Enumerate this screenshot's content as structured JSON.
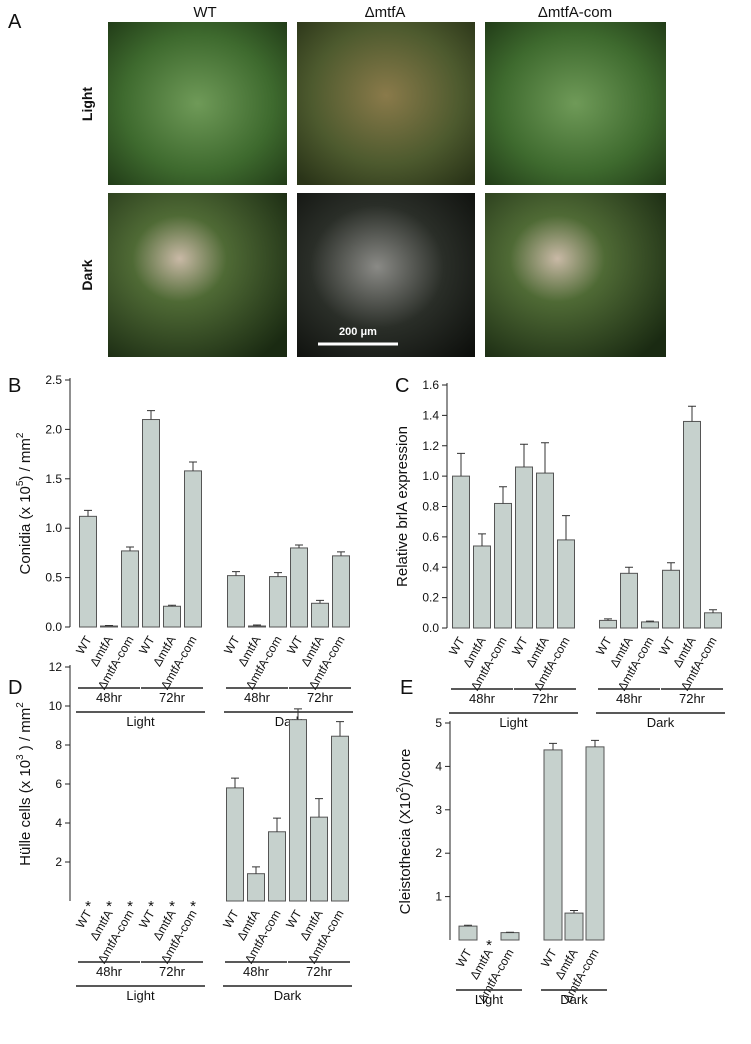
{
  "panel_a": {
    "label": "A",
    "columns": [
      "WT",
      "ΔmtfA",
      "ΔmtfA-com"
    ],
    "rows": [
      "Light",
      "Dark"
    ],
    "scale_bar": "200 μm"
  },
  "chart_data": [
    {
      "panel": "B",
      "type": "bar",
      "ylabel": [
        "Conidia (x 10",
        "5",
        ") / mm",
        "2"
      ],
      "color": "#c6d1cd",
      "ylim": [
        0,
        2.5
      ],
      "yticks": [
        {
          "value": 0,
          "label": "0.0"
        },
        0.5,
        {
          "value": 1,
          "label": "1.0"
        },
        1.5,
        {
          "value": 2,
          "label": "2.0"
        },
        2.5
      ],
      "groups": [
        {
          "label": "Light",
          "subgroups": [
            {
              "label": "48hr",
              "categories": [
                "WT",
                "ΔmtfA",
                "ΔmtfA-com"
              ],
              "values": [
                1.12,
                0.01,
                0.77
              ],
              "errors": [
                0.06,
                0.005,
                0.04
              ]
            },
            {
              "label": "72hr",
              "categories": [
                "WT",
                "ΔmtfA",
                "ΔmtfA-com"
              ],
              "values": [
                2.1,
                0.21,
                1.58
              ],
              "errors": [
                0.09,
                0.01,
                0.09
              ]
            }
          ]
        },
        {
          "label": "Dark",
          "subgroups": [
            {
              "label": "48hr",
              "categories": [
                "WT",
                "ΔmtfA",
                "ΔmtfA-com"
              ],
              "values": [
                0.52,
                0.01,
                0.51
              ],
              "errors": [
                0.04,
                0.01,
                0.04
              ]
            },
            {
              "label": "72hr",
              "categories": [
                "WT",
                "ΔmtfA",
                "ΔmtfA-com"
              ],
              "values": [
                0.8,
                0.24,
                0.72
              ],
              "errors": [
                0.03,
                0.03,
                0.04
              ]
            }
          ]
        }
      ]
    },
    {
      "panel": "C",
      "type": "bar",
      "ylabel": [
        "Relative brlA expression"
      ],
      "color": "#c6d1cd",
      "ylim": [
        0,
        1.6
      ],
      "yticks": [
        {
          "value": 0,
          "label": "0.0"
        },
        0.2,
        0.4,
        0.6,
        0.8,
        {
          "value": 1,
          "label": "1.0"
        },
        1.2,
        1.4,
        1.6
      ],
      "groups": [
        {
          "label": "Light",
          "subgroups": [
            {
              "label": "48hr",
              "categories": [
                "WT",
                "ΔmtfA",
                "ΔmtfA-com"
              ],
              "values": [
                1.0,
                0.54,
                0.82
              ],
              "errors": [
                0.15,
                0.08,
                0.11
              ]
            },
            {
              "label": "72hr",
              "categories": [
                "WT",
                "ΔmtfA",
                "ΔmtfA-com"
              ],
              "values": [
                1.06,
                1.02,
                0.58
              ],
              "errors": [
                0.15,
                0.2,
                0.16
              ]
            }
          ]
        },
        {
          "label": "Dark",
          "subgroups": [
            {
              "label": "48hr",
              "categories": [
                "WT",
                "ΔmtfA",
                "ΔmtfA-com"
              ],
              "values": [
                0.05,
                0.36,
                0.04
              ],
              "errors": [
                0.01,
                0.04,
                0.005
              ]
            },
            {
              "label": "72hr",
              "categories": [
                "WT",
                "ΔmtfA",
                "ΔmtfA-com"
              ],
              "values": [
                0.38,
                1.36,
                0.1
              ],
              "errors": [
                0.05,
                0.1,
                0.02
              ]
            }
          ]
        }
      ]
    },
    {
      "panel": "D",
      "type": "bar",
      "ylabel": [
        "Hülle cells (x 10",
        "3",
        " ) / mm",
        "2"
      ],
      "color": "#c6d1cd",
      "ylim": [
        0,
        12
      ],
      "yticks": [
        2,
        4,
        6,
        8,
        10,
        12
      ],
      "groups": [
        {
          "label": "Light",
          "subgroups": [
            {
              "label": "48hr",
              "categories": [
                "WT",
                "ΔmtfA",
                "ΔmtfA-com"
              ],
              "values": [
                null,
                null,
                null
              ],
              "value_labels": [
                "*",
                "*",
                "*"
              ],
              "errors": [
                null,
                null,
                null
              ]
            },
            {
              "label": "72hr",
              "categories": [
                "WT",
                "ΔmtfA",
                "ΔmtfA-com"
              ],
              "values": [
                null,
                null,
                null
              ],
              "value_labels": [
                "*",
                "*",
                "*"
              ],
              "errors": [
                null,
                null,
                null
              ]
            }
          ]
        },
        {
          "label": "Dark",
          "subgroups": [
            {
              "label": "48hr",
              "categories": [
                "WT",
                "ΔmtfA",
                "ΔmtfA-com"
              ],
              "values": [
                5.8,
                1.4,
                3.55
              ],
              "errors": [
                0.5,
                0.35,
                0.7
              ]
            },
            {
              "label": "72hr",
              "categories": [
                "WT",
                "ΔmtfA",
                "ΔmtfA-com"
              ],
              "values": [
                9.3,
                4.3,
                8.45
              ],
              "errors": [
                0.55,
                0.95,
                0.75
              ]
            }
          ]
        }
      ]
    },
    {
      "panel": "E",
      "type": "bar",
      "ylabel": [
        "Cleistothecia (X10",
        "2",
        ")/core"
      ],
      "color": "#c6d1cd",
      "ylim": [
        0,
        5
      ],
      "yticks": [
        1,
        2,
        3,
        4,
        5
      ],
      "groups": [
        {
          "label": "Light",
          "subgroups": [
            {
              "categories": [
                "WT",
                "ΔmtfA",
                "ΔmtfA-com"
              ],
              "values": [
                0.32,
                null,
                0.17
              ],
              "value_labels": [
                null,
                "*",
                null
              ],
              "errors": [
                0.02,
                null,
                0.01
              ]
            }
          ]
        },
        {
          "label": "Dark",
          "subgroups": [
            {
              "categories": [
                "WT",
                "ΔmtfA",
                "ΔmtfA-com"
              ],
              "values": [
                4.38,
                0.62,
                4.45
              ],
              "errors": [
                0.15,
                0.06,
                0.15
              ]
            }
          ]
        }
      ]
    }
  ]
}
